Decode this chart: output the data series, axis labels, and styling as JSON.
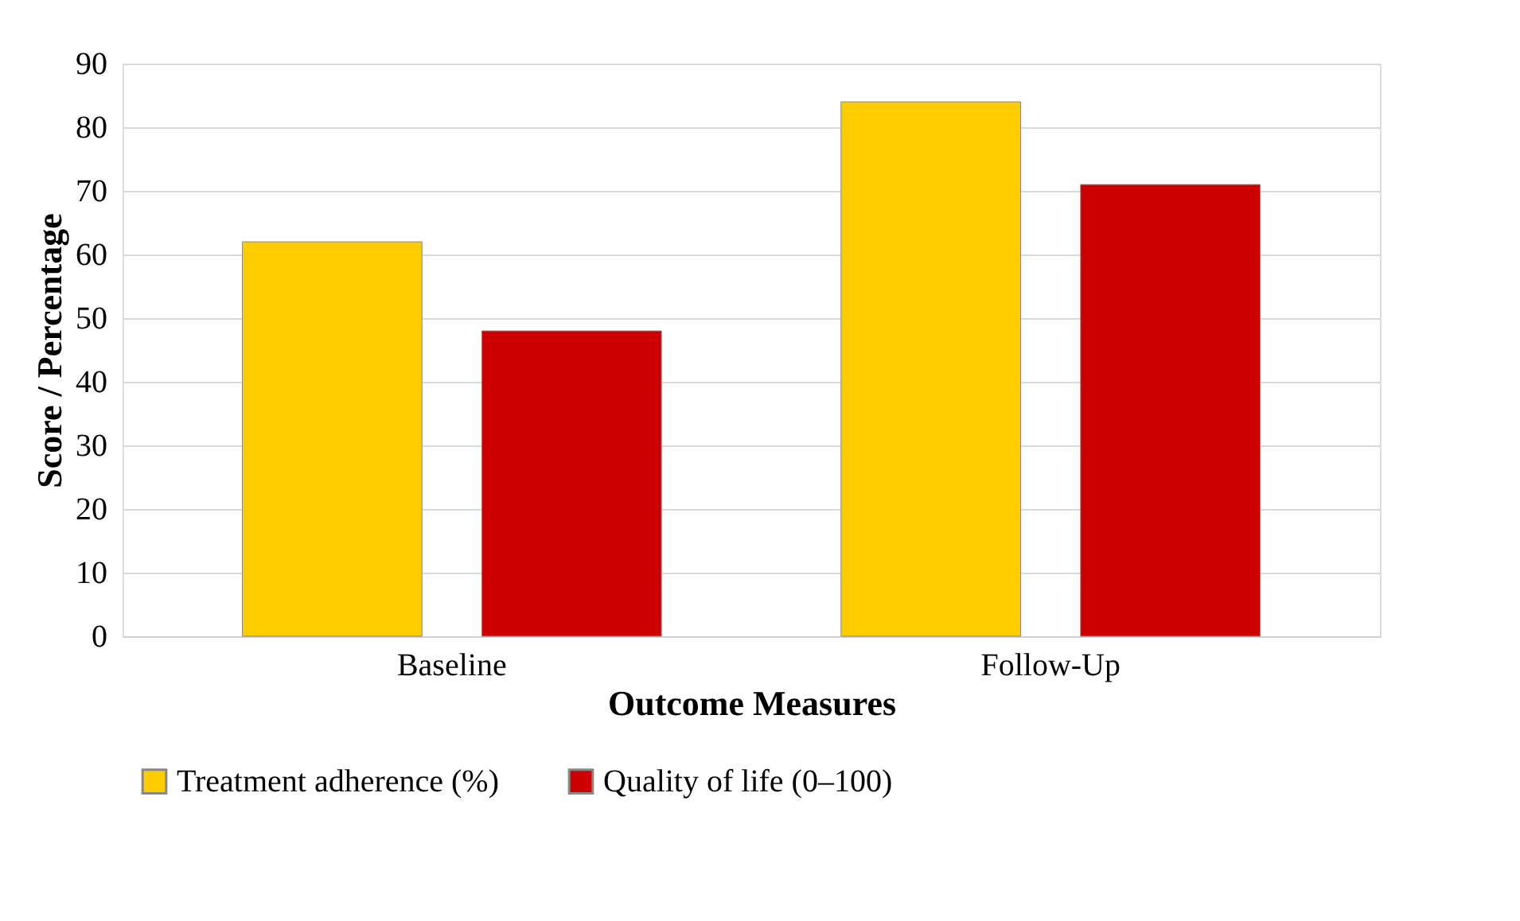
{
  "chart_data": {
    "type": "bar",
    "xlabel": "Outcome Measures",
    "ylabel": "Score / Percentage",
    "categories": [
      "Baseline",
      "Follow-Up"
    ],
    "series": [
      {
        "name": "Treatment adherence (%)",
        "color": "#ffcc00",
        "values": [
          62,
          84
        ]
      },
      {
        "name": "Quality of life (0–100)",
        "color": "#cc0000",
        "values": [
          48,
          71
        ]
      }
    ],
    "ylim": [
      0,
      90
    ],
    "yticks": [
      0,
      10,
      20,
      30,
      40,
      50,
      60,
      70,
      80,
      90
    ],
    "grid": "y",
    "legend": "bottom"
  }
}
